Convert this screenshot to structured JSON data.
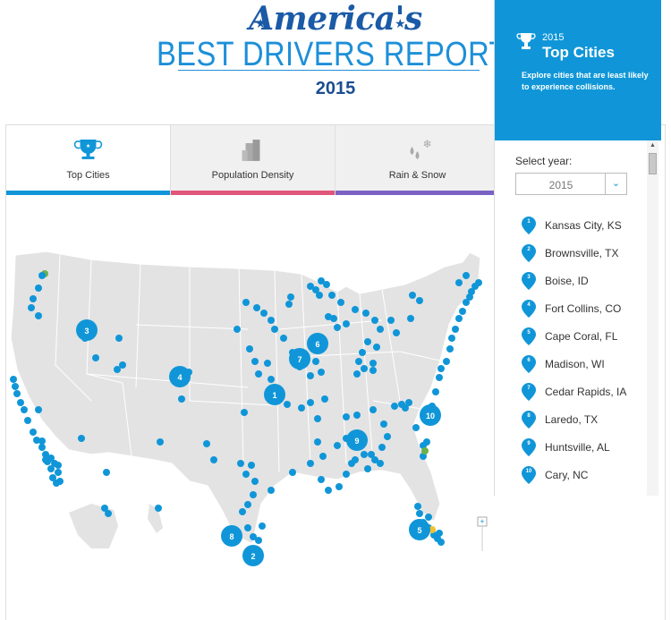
{
  "header": {
    "script_title": "America's",
    "main_title": "BEST DRIVERS REPORT",
    "registered": "®",
    "year": "2015"
  },
  "tabs": [
    {
      "label": "Top Cities",
      "icon": "trophy-icon",
      "color": "#1096d8",
      "active": true
    },
    {
      "label": "Population Density",
      "icon": "buildings-icon",
      "color": "#e0557a",
      "active": false
    },
    {
      "label": "Rain & Snow",
      "icon": "rain-snow-icon",
      "color": "#7b61c4",
      "active": false
    }
  ],
  "sidebar": {
    "year": "2015",
    "title": "Top Cities",
    "description": "Explore cities that are least likely to experience collisions.",
    "select_label": "Select year:",
    "select_value": "2015",
    "cities": [
      {
        "rank": "1",
        "name": "Kansas City, KS"
      },
      {
        "rank": "2",
        "name": "Brownsville, TX"
      },
      {
        "rank": "3",
        "name": "Boise, ID"
      },
      {
        "rank": "4",
        "name": "Fort Collins, CO"
      },
      {
        "rank": "5",
        "name": "Cape Coral, FL"
      },
      {
        "rank": "6",
        "name": "Madison, WI"
      },
      {
        "rank": "7",
        "name": "Cedar Rapids, IA"
      },
      {
        "rank": "8",
        "name": "Laredo, TX"
      },
      {
        "rank": "9",
        "name": "Huntsville, AL"
      },
      {
        "rank": "10",
        "name": "Cary, NC"
      }
    ]
  },
  "map": {
    "ranked_markers": [
      "1",
      "2",
      "3",
      "4",
      "5",
      "6",
      "7",
      "8",
      "9",
      "10"
    ],
    "zoom_in": "+",
    "zoom_out": "−",
    "colors": {
      "marker": "#1096d8",
      "land": "#e3e3e3",
      "highlight_green": "#6ab04c",
      "highlight_yellow": "#f2c12e"
    }
  }
}
